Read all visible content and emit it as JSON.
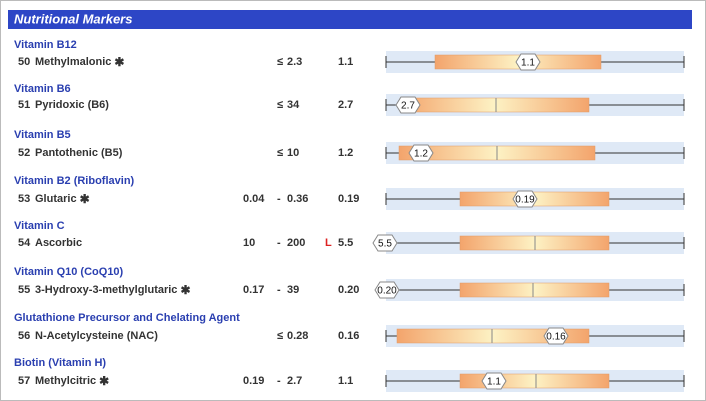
{
  "header": {
    "title": "Nutritional Markers"
  },
  "rows": [
    {
      "group": "Vitamin B12",
      "number": "50",
      "name": "Methylmalonic",
      "asterisk": true,
      "range": [
        "≤",
        "2.3"
      ],
      "result": "1.1"
    },
    {
      "group": "Vitamin B6",
      "number": "51",
      "name": "Pyridoxic (B6)",
      "asterisk": false,
      "range": [
        "≤",
        "34"
      ],
      "result": "2.7"
    },
    {
      "group": "Vitamin B5",
      "number": "52",
      "name": "Pantothenic (B5)",
      "asterisk": false,
      "range": [
        "≤",
        "10"
      ],
      "result": "1.2"
    },
    {
      "group": "Vitamin B2 (Riboflavin)",
      "number": "53",
      "name": "Glutaric",
      "asterisk": true,
      "range": [
        "0.04",
        "-",
        "0.36"
      ],
      "result": "0.19"
    },
    {
      "group": "Vitamin C",
      "number": "54",
      "name": "Ascorbic",
      "asterisk": false,
      "range": [
        "10",
        "-",
        "200"
      ],
      "flag": "L",
      "result": "5.5"
    },
    {
      "group": "Vitamin Q10 (CoQ10)",
      "number": "55",
      "name": "3-Hydroxy-3-methylglutaric",
      "asterisk": true,
      "range": [
        "0.17",
        "-",
        "39"
      ],
      "result": "0.20"
    },
    {
      "group": "Glutathione Precursor and Chelating Agent",
      "number": "56",
      "name": "N-Acetylcysteine (NAC)",
      "asterisk": false,
      "range": [
        "≤",
        "0.28"
      ],
      "result": "0.16"
    },
    {
      "group": "Biotin (Vitamin H)",
      "number": "57",
      "name": "Methylcitric",
      "asterisk": true,
      "range": [
        "0.19",
        "-",
        "2.7"
      ],
      "result": "1.1"
    }
  ]
}
